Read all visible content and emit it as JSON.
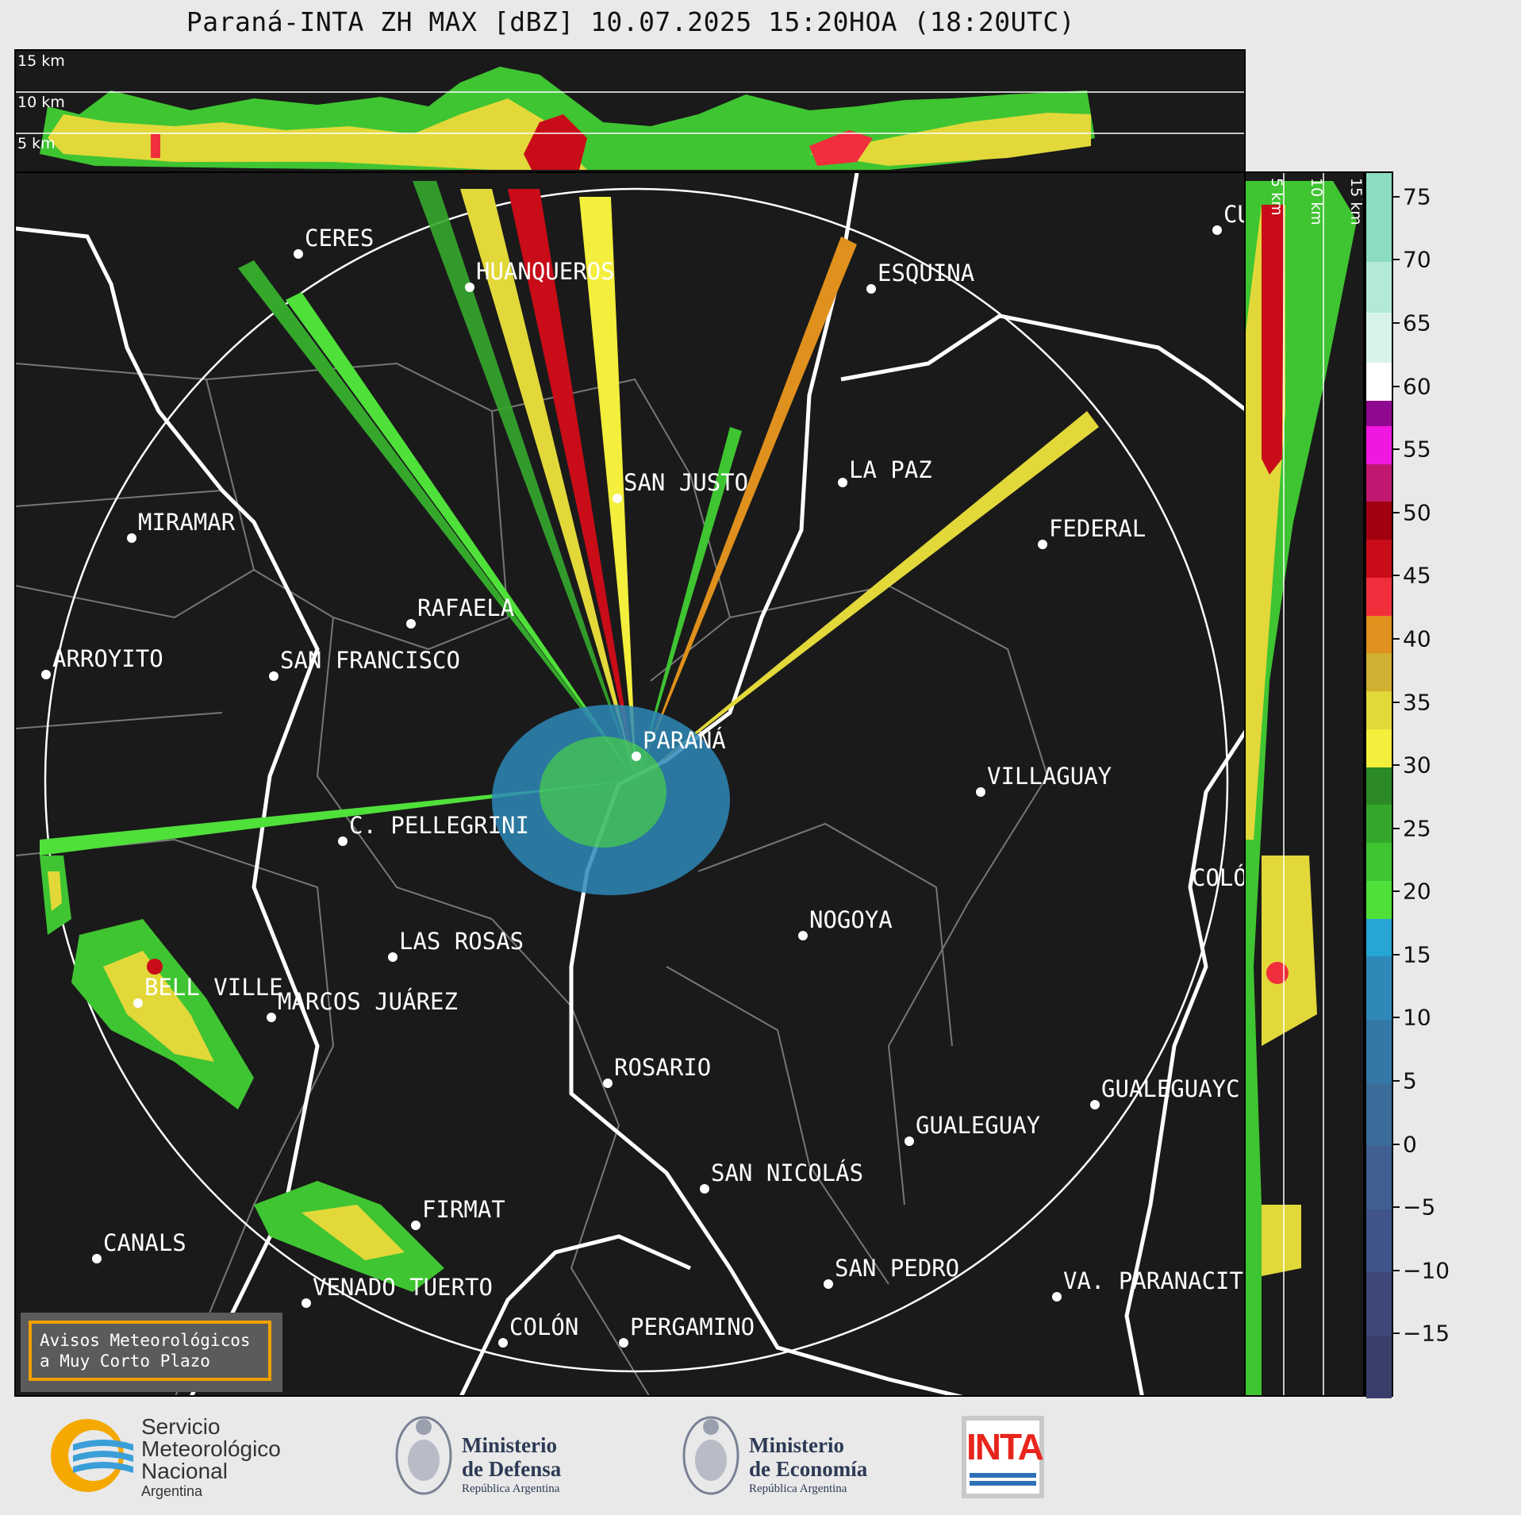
{
  "title": "Paraná-INTA ZH MAX [dBZ] 10.07.2025 15:20HOA (18:20UTC)",
  "top_panel": {
    "height_labels": [
      "15 km",
      "10 km",
      "5 km"
    ]
  },
  "side_panel": {
    "height_labels": [
      "5 km",
      "10 km",
      "15 km"
    ]
  },
  "map": {
    "cities": [
      {
        "name": "CERES"
      },
      {
        "name": "HUANQUEROS"
      },
      {
        "name": "ESQUINA"
      },
      {
        "name": "CU"
      },
      {
        "name": "SAN JUSTO"
      },
      {
        "name": "LA PAZ"
      },
      {
        "name": "MIRAMAR"
      },
      {
        "name": "FEDERAL"
      },
      {
        "name": "RAFAELA"
      },
      {
        "name": "ARROYITO"
      },
      {
        "name": "SAN FRANCISCO"
      },
      {
        "name": "PARANÁ"
      },
      {
        "name": "VILLAGUAY"
      },
      {
        "name": "C. PELLEGRINI"
      },
      {
        "name": "COLÓ"
      },
      {
        "name": "NOGOYA"
      },
      {
        "name": "LAS ROSAS"
      },
      {
        "name": "BELL VILLE"
      },
      {
        "name": "MARCOS JUÁREZ"
      },
      {
        "name": "ROSARIO"
      },
      {
        "name": "GUALEGUAYC"
      },
      {
        "name": "GUALEGUAY"
      },
      {
        "name": "SAN NICOLÁS"
      },
      {
        "name": "FIRMAT"
      },
      {
        "name": "CANALS"
      },
      {
        "name": "SAN PEDRO"
      },
      {
        "name": "VENADO TUERTO"
      },
      {
        "name": "VA. PARANACIT"
      },
      {
        "name": "COLÓN"
      },
      {
        "name": "PERGAMINO"
      }
    ],
    "warning_box": {
      "line1": "Avisos Meteorológicos",
      "line2": "a Muy Corto Plazo"
    }
  },
  "colorbar": {
    "unit": "dBZ",
    "tick_labels": [
      "75",
      "70",
      "65",
      "60",
      "55",
      "50",
      "45",
      "40",
      "35",
      "30",
      "25",
      "20",
      "15",
      "10",
      "5",
      "0",
      "−5",
      "−10",
      "−15"
    ],
    "tick_values": [
      75,
      70,
      65,
      60,
      55,
      50,
      45,
      40,
      35,
      30,
      25,
      20,
      15,
      10,
      5,
      0,
      -5,
      -10,
      -15
    ],
    "range": [
      -20,
      77
    ],
    "segments": [
      {
        "from": -20,
        "to": -15,
        "color": "#3a3e6a"
      },
      {
        "from": -15,
        "to": -10,
        "color": "#3d4878"
      },
      {
        "from": -10,
        "to": -5,
        "color": "#3f5488"
      },
      {
        "from": -5,
        "to": 0,
        "color": "#3f6090"
      },
      {
        "from": 0,
        "to": 5,
        "color": "#3b6c9a"
      },
      {
        "from": 5,
        "to": 10,
        "color": "#3478a6"
      },
      {
        "from": 10,
        "to": 15,
        "color": "#2e88b8"
      },
      {
        "from": 15,
        "to": 18,
        "color": "#27a6d6"
      },
      {
        "from": 18,
        "to": 21,
        "color": "#4fe03a"
      },
      {
        "from": 21,
        "to": 24,
        "color": "#3fc432"
      },
      {
        "from": 24,
        "to": 27,
        "color": "#35a82c"
      },
      {
        "from": 27,
        "to": 30,
        "color": "#2b8a26"
      },
      {
        "from": 30,
        "to": 33,
        "color": "#f4ee3c"
      },
      {
        "from": 33,
        "to": 36,
        "color": "#e2d83a"
      },
      {
        "from": 36,
        "to": 39,
        "color": "#d0b030"
      },
      {
        "from": 39,
        "to": 42,
        "color": "#e0901c"
      },
      {
        "from": 42,
        "to": 45,
        "color": "#f02e3c"
      },
      {
        "from": 45,
        "to": 48,
        "color": "#c80c18"
      },
      {
        "from": 48,
        "to": 51,
        "color": "#a00010"
      },
      {
        "from": 51,
        "to": 54,
        "color": "#c01870"
      },
      {
        "from": 54,
        "to": 57,
        "color": "#f018e0"
      },
      {
        "from": 57,
        "to": 59,
        "color": "#900890"
      },
      {
        "from": 59,
        "to": 62,
        "color": "#ffffff"
      },
      {
        "from": 62,
        "to": 66,
        "color": "#d8f4ea"
      },
      {
        "from": 66,
        "to": 70,
        "color": "#b2ead6"
      },
      {
        "from": 70,
        "to": 77,
        "color": "#8cdcc0"
      }
    ]
  },
  "footer": {
    "smn": {
      "line1": "Servicio",
      "line2": "Meteorológico",
      "line3": "Nacional",
      "line4": "Argentina"
    },
    "defensa": {
      "line1": "Ministerio",
      "line2": "de Defensa",
      "line3": "República Argentina"
    },
    "economia": {
      "line1": "Ministerio",
      "line2": "de Economía",
      "line3": "República Argentina"
    },
    "inta": {
      "text": "INTA"
    }
  }
}
